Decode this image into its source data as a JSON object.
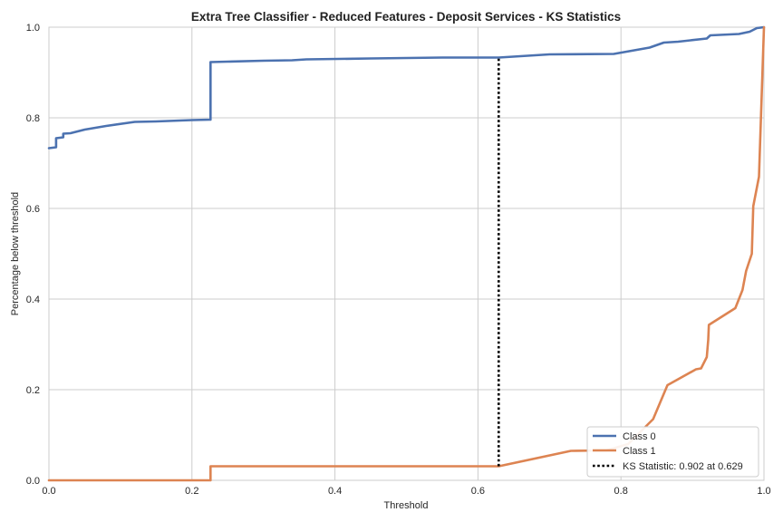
{
  "chart_data": {
    "type": "line",
    "title": "Extra Tree Classifier - Reduced Features - Deposit Services - KS Statistics",
    "xlabel": "Threshold",
    "ylabel": "Percentage below threshold",
    "xlim": [
      0.0,
      1.0
    ],
    "ylim": [
      0.0,
      1.0
    ],
    "xticks": [
      "0.0",
      "0.2",
      "0.4",
      "0.6",
      "0.8",
      "1.0"
    ],
    "yticks": [
      "0.0",
      "0.2",
      "0.4",
      "0.6",
      "0.8",
      "1.0"
    ],
    "grid": true,
    "legend_position": "lower-right",
    "series": [
      {
        "name": "Class 0",
        "color": "#4c72b0",
        "x": [
          0.0,
          0.01,
          0.01,
          0.02,
          0.02,
          0.03,
          0.05,
          0.08,
          0.12,
          0.15,
          0.2,
          0.226,
          0.226,
          0.25,
          0.3,
          0.34,
          0.36,
          0.45,
          0.55,
          0.629,
          0.7,
          0.79,
          0.84,
          0.86,
          0.88,
          0.92,
          0.925,
          0.965,
          0.98,
          0.99,
          1.0
        ],
        "y": [
          0.733,
          0.735,
          0.755,
          0.757,
          0.765,
          0.766,
          0.774,
          0.782,
          0.791,
          0.792,
          0.795,
          0.796,
          0.923,
          0.924,
          0.926,
          0.927,
          0.929,
          0.931,
          0.933,
          0.933,
          0.94,
          0.941,
          0.955,
          0.966,
          0.968,
          0.975,
          0.982,
          0.985,
          0.99,
          0.998,
          1.0
        ]
      },
      {
        "name": "Class 1",
        "color": "#dd8452",
        "x": [
          0.0,
          0.226,
          0.226,
          0.629,
          0.73,
          0.78,
          0.81,
          0.845,
          0.865,
          0.905,
          0.912,
          0.92,
          0.922,
          0.923,
          0.96,
          0.97,
          0.975,
          0.983,
          0.985,
          0.993,
          1.0
        ],
        "y": [
          0.0,
          0.0,
          0.031,
          0.031,
          0.065,
          0.066,
          0.08,
          0.135,
          0.21,
          0.245,
          0.247,
          0.272,
          0.31,
          0.343,
          0.38,
          0.42,
          0.462,
          0.5,
          0.605,
          0.67,
          1.0
        ]
      }
    ],
    "ks_statistic": {
      "label": "KS Statistic: 0.902 at 0.629",
      "threshold": 0.629,
      "y_low": 0.031,
      "y_high": 0.933,
      "color": "#000000"
    }
  }
}
